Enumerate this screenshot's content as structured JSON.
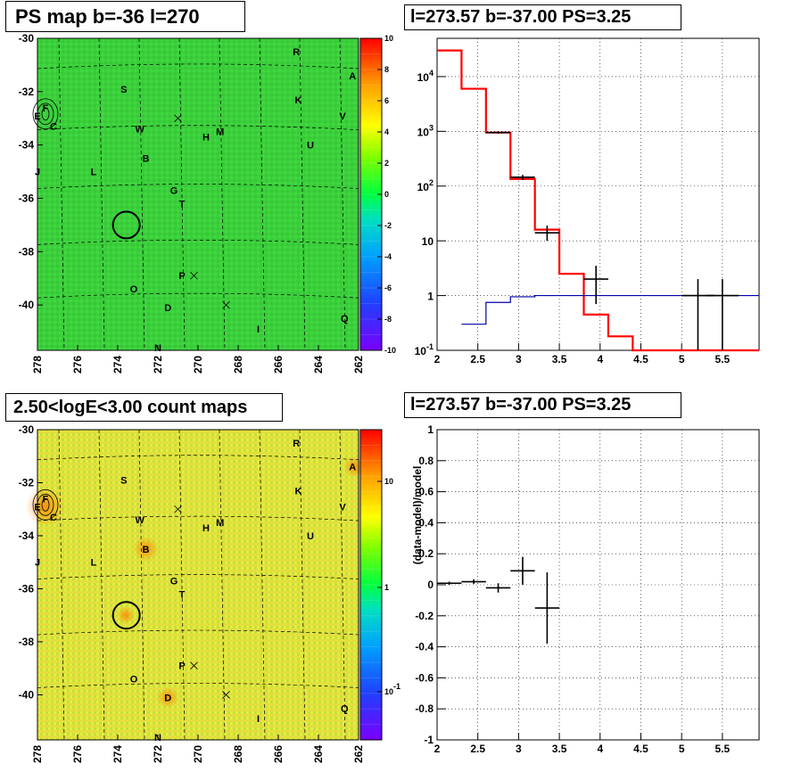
{
  "titles": {
    "ps_map": "PS map b=-36 l=270",
    "spectrum": "l=273.57 b=-37.00 PS=3.25",
    "count_map": "2.50<logE<3.00 count maps",
    "residual": "l=273.57 b=-37.00 PS=3.25"
  },
  "chart_data": [
    {
      "type": "heatmap",
      "title": "PS map b=-36 l=270",
      "x_ticks": [
        "278",
        "276",
        "274",
        "272",
        "270",
        "268",
        "266",
        "264",
        "262"
      ],
      "y_ticks": [
        "-30",
        "-32",
        "-34",
        "-36",
        "-38",
        "-40"
      ],
      "xlim": [
        278,
        262
      ],
      "ylim": [
        -41.7,
        -30
      ],
      "colorbar": {
        "range": [
          -10,
          10
        ],
        "ticks": [
          "10",
          "8",
          "6",
          "4",
          "2",
          "0",
          "-2",
          "-4",
          "-6",
          "-8",
          "-10"
        ]
      },
      "source_labels": [
        {
          "name": "R",
          "l": 265.1,
          "b": -30.5
        },
        {
          "name": "A",
          "l": 262.3,
          "b": -31.4
        },
        {
          "name": "S",
          "l": 273.7,
          "b": -31.9
        },
        {
          "name": "K",
          "l": 265.0,
          "b": -32.3
        },
        {
          "name": "F",
          "l": 277.6,
          "b": -32.6
        },
        {
          "name": "E",
          "l": 278.0,
          "b": -32.9
        },
        {
          "name": "V",
          "l": 262.8,
          "b": -32.9
        },
        {
          "name": "C",
          "l": 277.2,
          "b": -33.3
        },
        {
          "name": "W",
          "l": 272.9,
          "b": -33.4
        },
        {
          "name": "M",
          "l": 268.9,
          "b": -33.5
        },
        {
          "name": "H",
          "l": 269.6,
          "b": -33.7
        },
        {
          "name": "U",
          "l": 264.4,
          "b": -34.0
        },
        {
          "name": "B",
          "l": 272.6,
          "b": -34.5
        },
        {
          "name": "J",
          "l": 278.0,
          "b": -35.0
        },
        {
          "name": "L",
          "l": 275.2,
          "b": -35.0
        },
        {
          "name": "G",
          "l": 271.2,
          "b": -35.7
        },
        {
          "name": "T",
          "l": 270.8,
          "b": -36.2
        },
        {
          "name": "P",
          "l": 270.8,
          "b": -38.9
        },
        {
          "name": "O",
          "l": 273.2,
          "b": -39.4
        },
        {
          "name": "D",
          "l": 271.5,
          "b": -40.1
        },
        {
          "name": "Q",
          "l": 262.7,
          "b": -40.5
        },
        {
          "name": "I",
          "l": 267.0,
          "b": -40.9
        },
        {
          "name": "N",
          "l": 272.0,
          "b": -41.6
        }
      ],
      "circle": {
        "l": 273.57,
        "b": -37.0
      }
    },
    {
      "type": "line",
      "title": "l=273.57 b=-37.00 PS=3.25",
      "y_scale": "log",
      "xlim": [
        2,
        5.95
      ],
      "ylim": [
        0.1,
        50000
      ],
      "x_ticks": [
        "2",
        "2.5",
        "3",
        "3.5",
        "4",
        "4.5",
        "5",
        "5.5"
      ],
      "y_ticks": [
        "10^4",
        "10^3",
        "10^2",
        "10",
        "1",
        "10^-1"
      ],
      "series": [
        {
          "color": "#ff0000",
          "steps": {
            "edges": [
              2.0,
              2.3,
              2.6,
              2.9,
              3.2,
              3.5,
              3.8,
              4.1,
              4.4,
              5.95
            ],
            "values": [
              30000,
              6000,
              950,
              135,
              16,
              2.5,
              0.45,
              0.18,
              0.1
            ]
          }
        },
        {
          "color": "#0000aa",
          "steps": {
            "edges": [
              2.3,
              2.6,
              2.9,
              3.2,
              5.95
            ],
            "values": [
              0.3,
              0.75,
              0.95,
              1.0
            ]
          }
        },
        {
          "color": "#000000",
          "points": [
            {
              "x": 2.75,
              "y": 950,
              "xerr": 0.15,
              "ylo": 900,
              "yhi": 1000
            },
            {
              "x": 3.05,
              "y": 145,
              "xerr": 0.15,
              "ylo": 130,
              "yhi": 160
            },
            {
              "x": 3.35,
              "y": 14,
              "xerr": 0.15,
              "ylo": 10,
              "yhi": 19
            },
            {
              "x": 3.95,
              "y": 2,
              "xerr": 0.15,
              "ylo": 0.7,
              "yhi": 3.5
            },
            {
              "x": 5.2,
              "y": 1,
              "xerr": 0.2,
              "ylo": 0.1,
              "yhi": 2
            },
            {
              "x": 5.5,
              "y": 1,
              "xerr": 0.2,
              "ylo": 0.1,
              "yhi": 2
            }
          ]
        }
      ]
    },
    {
      "type": "heatmap",
      "title": "2.50<logE<3.00 count maps",
      "x_ticks": [
        "278",
        "276",
        "274",
        "272",
        "270",
        "268",
        "266",
        "264",
        "262"
      ],
      "y_ticks": [
        "-30",
        "-32",
        "-34",
        "-36",
        "-38",
        "-40"
      ],
      "xlim": [
        278,
        262
      ],
      "ylim": [
        -41.7,
        -30
      ],
      "colorbar": {
        "scale": "log",
        "ticks": [
          "10",
          "1",
          "10^-1"
        ]
      }
    },
    {
      "type": "scatter",
      "title": "l=273.57 b=-37.00 PS=3.25",
      "ylabel": "(data-model)/model",
      "xlim": [
        2,
        5.95
      ],
      "ylim": [
        -1,
        1
      ],
      "x_ticks": [
        "2",
        "2.5",
        "3",
        "3.5",
        "4",
        "4.5",
        "5",
        "5.5"
      ],
      "y_ticks": [
        "1",
        "0.8",
        "0.6",
        "0.4",
        "0.2",
        "0",
        "-0.2",
        "-0.4",
        "-0.6",
        "-0.8",
        "-1"
      ],
      "points": [
        {
          "x": 2.15,
          "y": 0.01,
          "xerr": 0.15,
          "yerr": 0.01
        },
        {
          "x": 2.45,
          "y": 0.02,
          "xerr": 0.15,
          "yerr": 0.015
        },
        {
          "x": 2.75,
          "y": -0.02,
          "xerr": 0.15,
          "yerr": 0.03
        },
        {
          "x": 3.05,
          "y": 0.09,
          "xerr": 0.15,
          "yerr": 0.09
        },
        {
          "x": 3.35,
          "y": -0.15,
          "xerr": 0.15,
          "yerr": 0.23
        }
      ]
    }
  ]
}
